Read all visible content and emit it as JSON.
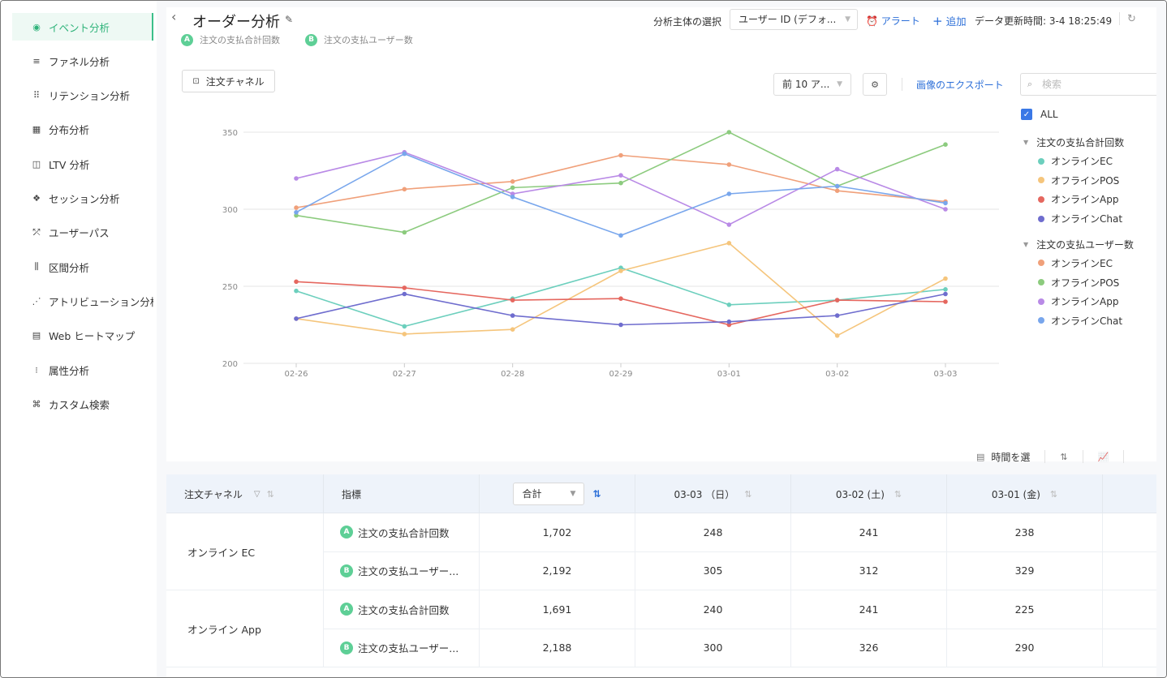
{
  "sidebar": {
    "items": [
      {
        "label": "イベント分析",
        "icon": "event-analysis-icon",
        "glyph": "◉",
        "active": true
      },
      {
        "label": "ファネル分析",
        "icon": "funnel-icon",
        "glyph": "≡"
      },
      {
        "label": "リテンション分析",
        "icon": "retention-icon",
        "glyph": "⠿"
      },
      {
        "label": "分布分析",
        "icon": "distribution-icon",
        "glyph": "▦"
      },
      {
        "label": "LTV 分析",
        "icon": "ltv-icon",
        "glyph": "◫"
      },
      {
        "label": "セッション分析",
        "icon": "session-icon",
        "glyph": "❖"
      },
      {
        "label": "ユーザーパス",
        "icon": "user-path-icon",
        "glyph": "⤱"
      },
      {
        "label": "区間分析",
        "icon": "interval-icon",
        "glyph": "⫼"
      },
      {
        "label": "アトリビューション分析",
        "icon": "attribution-icon",
        "glyph": "⋰"
      },
      {
        "label": "Web ヒートマップ",
        "icon": "heatmap-icon",
        "glyph": "▤"
      },
      {
        "label": "属性分析",
        "icon": "attribute-icon",
        "glyph": "⁝"
      },
      {
        "label": "カスタム検索",
        "icon": "custom-search-icon",
        "glyph": "⌘"
      }
    ]
  },
  "header": {
    "title": "オーダー分析",
    "subject_label": "分析主体の選択",
    "subject_value": "ユーザー ID (デフォ...",
    "alert_label": "アラート",
    "add_label": "追加",
    "update_time": "データ更新時間: 3-4 18:25:49",
    "metrics": [
      {
        "badge": "A",
        "label": "注文の支払合計回数"
      },
      {
        "badge": "B",
        "label": "注文の支払ユーザー数"
      }
    ]
  },
  "toolbar": {
    "channel_button": "注文チャネル",
    "top_select": "前 10 ア...",
    "export_label": "画像のエクスポート",
    "search_placeholder": "検索"
  },
  "legend": {
    "all_label": "ALL",
    "groups": [
      {
        "name": "注文の支払合計回数",
        "items": [
          {
            "label": "オンラインEC",
            "color": "#6ccfbd"
          },
          {
            "label": "オフラインPOS",
            "color": "#f5c57c"
          },
          {
            "label": "オンラインApp",
            "color": "#e5675f"
          },
          {
            "label": "オンラインChat",
            "color": "#6f6dce"
          }
        ]
      },
      {
        "name": "注文の支払ユーザー数",
        "items": [
          {
            "label": "オンラインEC",
            "color": "#f0a07a"
          },
          {
            "label": "オフラインPOS",
            "color": "#8ccb7e"
          },
          {
            "label": "オンラインApp",
            "color": "#b98ae6"
          },
          {
            "label": "オンラインChat",
            "color": "#78a6ec"
          }
        ]
      }
    ]
  },
  "chart_data": {
    "type": "line",
    "x": [
      "02-26",
      "02-27",
      "02-28",
      "02-29",
      "03-01",
      "03-02",
      "03-03"
    ],
    "ylim": [
      200,
      350
    ],
    "yticks": [
      200,
      250,
      300,
      350
    ],
    "grid": true,
    "legend_position": "right",
    "series": [
      {
        "name": "注文の支払合計回数 オンラインEC",
        "color": "#6ccfbd",
        "values": [
          247,
          224,
          242,
          262,
          238,
          241,
          248
        ]
      },
      {
        "name": "注文の支払合計回数 オフラインPOS",
        "color": "#f5c57c",
        "values": [
          229,
          219,
          222,
          260,
          278,
          218,
          255
        ]
      },
      {
        "name": "注文の支払合計回数 オンラインApp",
        "color": "#e5675f",
        "values": [
          253,
          249,
          241,
          242,
          225,
          241,
          240
        ]
      },
      {
        "name": "注文の支払合計回数 オンラインChat",
        "color": "#6f6dce",
        "values": [
          229,
          245,
          231,
          225,
          227,
          231,
          245
        ]
      },
      {
        "name": "注文の支払ユーザー数 オンラインEC",
        "color": "#f0a07a",
        "values": [
          301,
          313,
          318,
          335,
          329,
          312,
          305
        ]
      },
      {
        "name": "注文の支払ユーザー数 オフラインPOS",
        "color": "#8ccb7e",
        "values": [
          296,
          285,
          314,
          317,
          350,
          315,
          342
        ]
      },
      {
        "name": "注文の支払ユーザー数 オンラインApp",
        "color": "#b98ae6",
        "values": [
          320,
          337,
          310,
          322,
          290,
          326,
          300
        ]
      },
      {
        "name": "注文の支払ユーザー数 オンラインChat",
        "color": "#78a6ec",
        "values": [
          298,
          336,
          308,
          283,
          310,
          315,
          304
        ]
      }
    ]
  },
  "table_tools": {
    "time_select_label": "時間を選"
  },
  "table": {
    "headers": {
      "channel": "注文チャネル",
      "metric": "指標",
      "aggregate": "合計",
      "date1": "03-03 （日）",
      "date2": "03-02 (土)",
      "date3": "03-01 (金)"
    },
    "rows": [
      {
        "channel": "オンライン EC",
        "badge": "A",
        "metric": "注文の支払合計回数",
        "total": "1,702",
        "d1": "248",
        "d2": "241",
        "d3": "238"
      },
      {
        "channel": "",
        "badge": "B",
        "metric": "注文の支払ユーザー...",
        "total": "2,192",
        "d1": "305",
        "d2": "312",
        "d3": "329"
      },
      {
        "channel": "オンライン App",
        "badge": "A",
        "metric": "注文の支払合計回数",
        "total": "1,691",
        "d1": "240",
        "d2": "241",
        "d3": "225"
      },
      {
        "channel": "",
        "badge": "B",
        "metric": "注文の支払ユーザー...",
        "total": "2,188",
        "d1": "300",
        "d2": "326",
        "d3": "290"
      }
    ]
  }
}
